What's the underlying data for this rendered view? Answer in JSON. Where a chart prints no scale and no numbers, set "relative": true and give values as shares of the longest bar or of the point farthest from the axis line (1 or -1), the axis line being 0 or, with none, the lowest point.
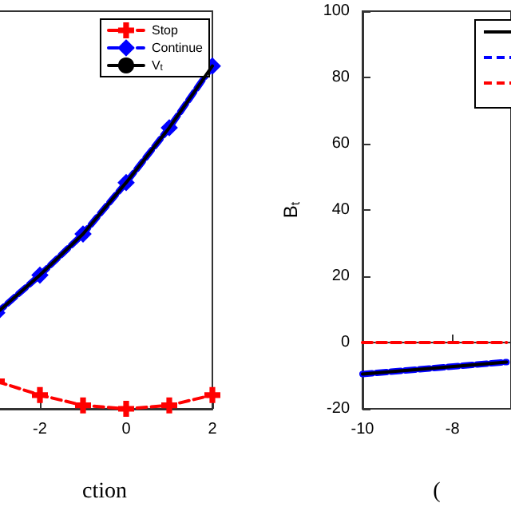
{
  "chart_data": [
    {
      "type": "line",
      "relative": true,
      "xlabel": "ction",
      "x": [
        -3,
        -2,
        -1,
        0,
        1,
        2
      ],
      "xlim": [
        -3,
        2
      ],
      "xticks": [
        -2,
        0,
        2
      ],
      "tick_labels": "x",
      "legend": "top right",
      "series": [
        {
          "name": "Stop",
          "color": "#ff0000",
          "marker": "cross",
          "line_style": "dashed",
          "values": [
            0.08,
            0.04,
            0.01,
            0,
            0.01,
            0.04
          ]
        },
        {
          "name": "Continue",
          "color": "#0000ff",
          "marker": "diamond",
          "line_style": "dashed",
          "values": [
            0.28,
            0.39,
            0.51,
            0.66,
            0.82,
            1.0
          ]
        },
        {
          "name": "V$_{t}$",
          "color": "#000000",
          "marker": "none",
          "line_style": "solid",
          "values": [
            0.28,
            0.39,
            0.51,
            0.66,
            0.82,
            1.0
          ]
        }
      ]
    },
    {
      "type": "line",
      "xlabel": "(",
      "ylabel": "B$_{t}$",
      "x": [
        -10,
        -6.8
      ],
      "xlim": [
        -10,
        -6.7
      ],
      "xticks": [
        -10,
        -8
      ],
      "ylim": [
        -20,
        100
      ],
      "yticks": [
        -20,
        0,
        20,
        40,
        60,
        80,
        100
      ],
      "legend": "top right",
      "series": [
        {
          "color": "#0000ff",
          "marker": "none",
          "line_style": "dashed",
          "values": [
            -9.5,
            -5.9
          ]
        },
        {
          "color": "#000000",
          "marker": "none",
          "line_style": "solid",
          "values": [
            -9.5,
            -5.9
          ]
        },
        {
          "color": "#ff0000",
          "marker": "none",
          "line_style": "dashed",
          "values": [
            0,
            0
          ]
        }
      ]
    }
  ]
}
